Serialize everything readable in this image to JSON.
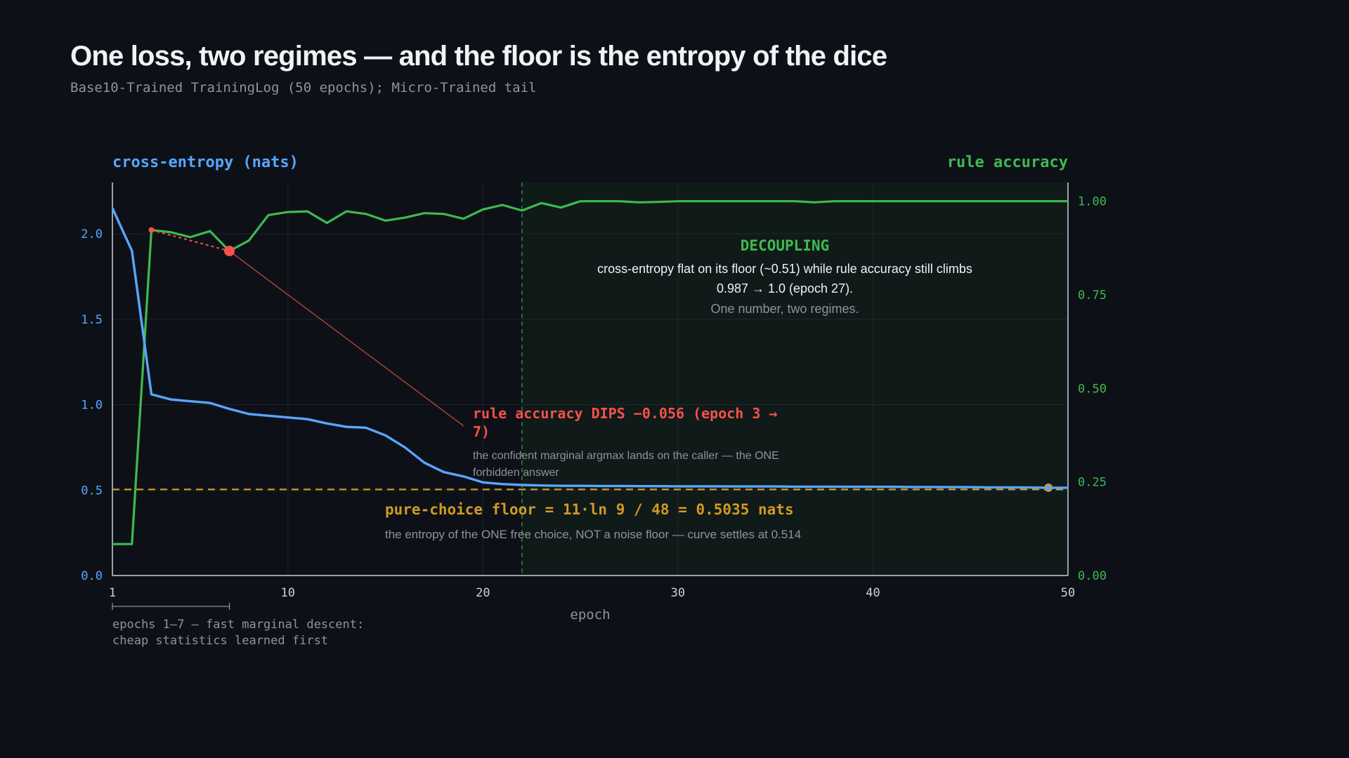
{
  "title": "One loss, two regimes — and the floor is the entropy of the dice",
  "subtitle": "Base10-Trained TrainingLog (50 epochs); Micro-Trained tail",
  "colors": {
    "background": "#0d1117",
    "loss": "#58a6ff",
    "accuracy": "#3fb950",
    "dip": "#f85149",
    "floor": "#d29922",
    "text_muted": "#8b949e"
  },
  "chart_data": {
    "type": "line",
    "xlabel": "epoch",
    "xlim": [
      1,
      50
    ],
    "x_ticks": [
      "1",
      "10",
      "20",
      "30",
      "40",
      "50"
    ],
    "y_left": {
      "label": "cross-entropy (nats)",
      "lim": [
        0,
        2.3
      ],
      "ticks": [
        "0.0",
        "0.5",
        "1.0",
        "1.5",
        "2.0"
      ]
    },
    "y_right": {
      "label": "rule accuracy",
      "lim": [
        0,
        1.05
      ],
      "ticks": [
        "0.00",
        "0.25",
        "0.50",
        "0.75",
        "1.00"
      ]
    },
    "grid": true,
    "x": [
      1,
      2,
      3,
      4,
      5,
      6,
      7,
      8,
      9,
      10,
      11,
      12,
      13,
      14,
      15,
      16,
      17,
      18,
      19,
      20,
      21,
      22,
      23,
      24,
      25,
      26,
      27,
      28,
      29,
      30,
      31,
      32,
      33,
      34,
      35,
      36,
      37,
      38,
      39,
      40,
      41,
      42,
      43,
      44,
      45,
      46,
      47,
      48,
      49,
      50
    ],
    "series": [
      {
        "name": "cross-entropy (nats)",
        "axis": "left",
        "values": [
          2.15,
          1.9,
          1.06,
          1.03,
          1.02,
          1.01,
          0.975,
          0.945,
          0.935,
          0.925,
          0.915,
          0.89,
          0.87,
          0.865,
          0.82,
          0.75,
          0.66,
          0.605,
          0.58,
          0.545,
          0.535,
          0.53,
          0.527,
          0.525,
          0.525,
          0.524,
          0.524,
          0.523,
          0.523,
          0.522,
          0.522,
          0.522,
          0.521,
          0.521,
          0.521,
          0.52,
          0.52,
          0.52,
          0.519,
          0.519,
          0.519,
          0.518,
          0.518,
          0.517,
          0.517,
          0.516,
          0.516,
          0.515,
          0.514,
          0.514
        ]
      },
      {
        "name": "rule accuracy",
        "axis": "right",
        "values": [
          0.084,
          0.084,
          0.923,
          0.917,
          0.904,
          0.92,
          0.867,
          0.895,
          0.963,
          0.971,
          0.973,
          0.942,
          0.973,
          0.966,
          0.948,
          0.956,
          0.968,
          0.966,
          0.953,
          0.978,
          0.99,
          0.975,
          0.995,
          0.983,
          1.0,
          1.0,
          1.0,
          0.997,
          0.998,
          1.0,
          1.0,
          1.0,
          1.0,
          1.0,
          1.0,
          1.0,
          0.997,
          1.0,
          1.0,
          1.0,
          1.0,
          1.0,
          1.0,
          1.0,
          1.0,
          1.0,
          1.0,
          1.0,
          1.0,
          1.0
        ]
      }
    ],
    "floor_value": 0.5035,
    "decoupling_start_epoch": 22,
    "dip": {
      "from_epoch": 3,
      "to_epoch": 7,
      "from_value": 0.923,
      "to_value": 0.867
    },
    "end_marker": {
      "epoch": 49,
      "value": 0.514
    },
    "annotations": {
      "decoupling_title": "DECOUPLING",
      "decoupling_line1": "cross-entropy flat on its floor (~0.51) while rule accuracy still climbs",
      "decoupling_line2": "0.987 → 1.0 (epoch 27).",
      "decoupling_line3": "One number, two regimes.",
      "dip_title_line1": "rule accuracy DIPS −0.056 (epoch 3 →",
      "dip_title_line2": "7)",
      "dip_note_line1": "the confident marginal argmax lands on the caller — the ONE",
      "dip_note_line2": "forbidden answer",
      "floor_title": "pure-choice floor = 11·ln 9 / 48 = 0.5035 nats",
      "floor_note": "the entropy of the ONE free choice, NOT a noise floor — curve settles at 0.514",
      "bracket_line1": "epochs 1–7 — fast marginal descent:",
      "bracket_line2": "cheap statistics learned first"
    }
  }
}
